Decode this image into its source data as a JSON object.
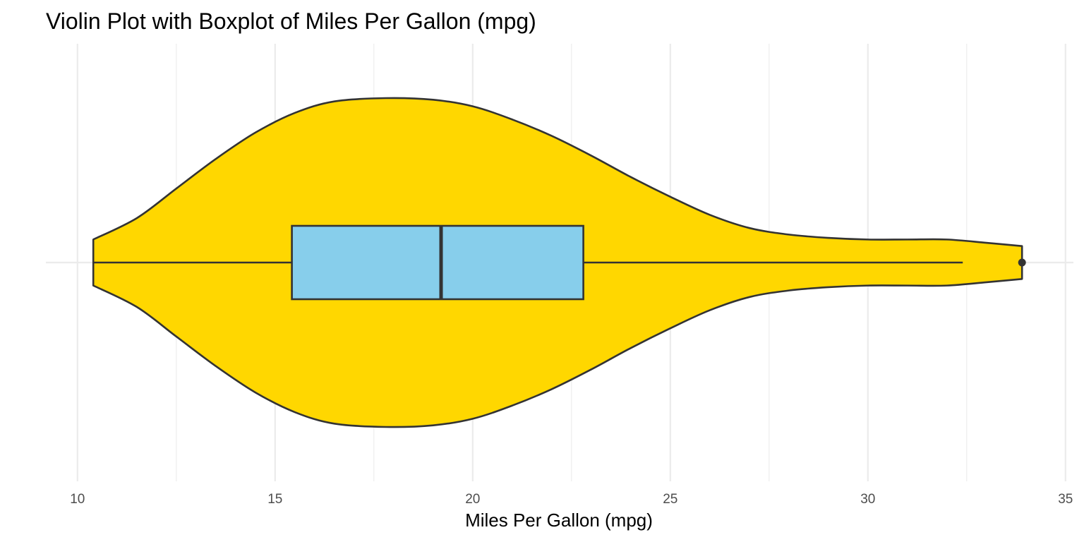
{
  "chart_data": {
    "type": "violin",
    "title": "Violin Plot with Boxplot of Miles Per Gallon (mpg)",
    "xlabel": "Miles Per Gallon (mpg)",
    "ylabel": "",
    "xlim": [
      9.2,
      35.2
    ],
    "x_ticks": [
      10,
      15,
      20,
      25,
      30,
      35
    ],
    "x_tick_labels": [
      "10",
      "15",
      "20",
      "25",
      "30",
      "35"
    ],
    "grid": true,
    "colors": {
      "violin_fill": "#FFD700",
      "box_fill": "#87CEEB",
      "outline": "#333333"
    },
    "violin_density": [
      {
        "x": 10.4,
        "width": 0.14
      },
      {
        "x": 11.5,
        "width": 0.27
      },
      {
        "x": 12.5,
        "width": 0.45
      },
      {
        "x": 13.5,
        "width": 0.63
      },
      {
        "x": 14.5,
        "width": 0.79
      },
      {
        "x": 15.5,
        "width": 0.91
      },
      {
        "x": 16.5,
        "width": 0.98
      },
      {
        "x": 17.8,
        "width": 1.0
      },
      {
        "x": 19.0,
        "width": 0.99
      },
      {
        "x": 20.0,
        "width": 0.95
      },
      {
        "x": 21.0,
        "width": 0.87
      },
      {
        "x": 22.0,
        "width": 0.77
      },
      {
        "x": 23.0,
        "width": 0.65
      },
      {
        "x": 24.0,
        "width": 0.52
      },
      {
        "x": 25.0,
        "width": 0.4
      },
      {
        "x": 26.0,
        "width": 0.29
      },
      {
        "x": 27.0,
        "width": 0.21
      },
      {
        "x": 28.0,
        "width": 0.17
      },
      {
        "x": 29.0,
        "width": 0.15
      },
      {
        "x": 30.0,
        "width": 0.14
      },
      {
        "x": 31.0,
        "width": 0.14
      },
      {
        "x": 32.0,
        "width": 0.14
      },
      {
        "x": 33.0,
        "width": 0.12
      },
      {
        "x": 33.9,
        "width": 0.1
      }
    ],
    "boxplot": {
      "whisker_low": 10.4,
      "q1": 15.425,
      "median": 19.2,
      "q3": 22.8,
      "whisker_high": 32.4,
      "outliers": [
        33.9
      ]
    }
  }
}
